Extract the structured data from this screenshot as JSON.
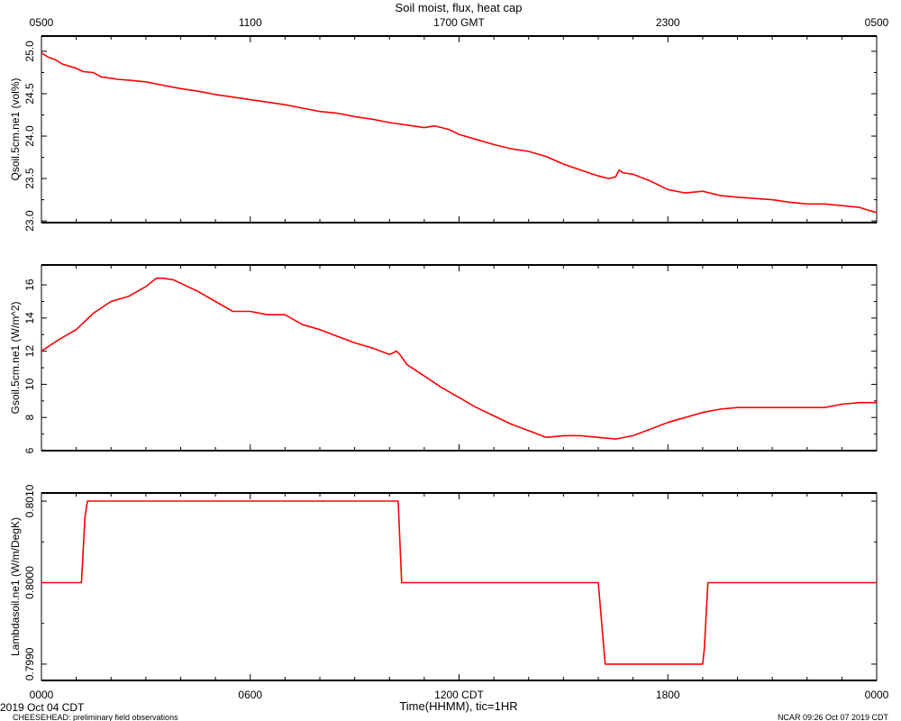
{
  "title": "Soil moist, flux, heat cap",
  "top_axis": {
    "ticks": [
      "0500",
      "1100",
      "1700 GMT",
      "2300",
      "0500"
    ]
  },
  "bottom_axis": {
    "ticks": [
      "0000",
      "0600",
      "1200 CDT",
      "1800",
      "0000"
    ],
    "label": "Time(HHMM), tic=1HR"
  },
  "footer": {
    "start_date": "2019 Oct 04 CDT",
    "project": "CHEESEHEAD: preliminary field observations",
    "credit": "NCAR 09:26 Oct 07 2019 CDT"
  },
  "colors": {
    "series": "#ff0000",
    "axes": "#000000"
  },
  "chart_data": [
    {
      "type": "line",
      "ylabel": "Qsoil.5cm.ne1 (vol%)",
      "ylim": [
        22.98,
        25.18
      ],
      "ytick_values": [
        23.0,
        23.5,
        24.0,
        24.5,
        25.0
      ],
      "ytick_labels": [
        "23.0",
        "23.5",
        "24.0",
        "24.5",
        "25.0"
      ],
      "xlim": [
        0,
        24
      ],
      "x": [
        0,
        0.2,
        0.4,
        0.6,
        1.0,
        1.2,
        1.5,
        1.7,
        2.2,
        2.5,
        3.0,
        3.5,
        4.0,
        4.5,
        5.0,
        6.0,
        7.0,
        7.5,
        8.0,
        8.5,
        9.0,
        9.5,
        10.0,
        10.5,
        11.0,
        11.3,
        11.5,
        11.7,
        12.0,
        12.5,
        13.0,
        13.5,
        14.0,
        14.5,
        15.0,
        15.5,
        16.0,
        16.3,
        16.5,
        16.6,
        16.7,
        17.0,
        17.5,
        18.0,
        18.5,
        19.0,
        19.5,
        20.0,
        21.0,
        21.5,
        22.0,
        22.5,
        23.0,
        23.5,
        23.8,
        24.0
      ],
      "y": [
        24.98,
        24.93,
        24.9,
        24.85,
        24.8,
        24.76,
        24.75,
        24.7,
        24.67,
        24.66,
        24.64,
        24.6,
        24.56,
        24.53,
        24.49,
        24.43,
        24.37,
        24.33,
        24.29,
        24.27,
        24.23,
        24.2,
        24.16,
        24.13,
        24.1,
        24.12,
        24.1,
        24.08,
        24.02,
        23.96,
        23.9,
        23.85,
        23.82,
        23.76,
        23.67,
        23.6,
        23.53,
        23.5,
        23.52,
        23.6,
        23.57,
        23.55,
        23.47,
        23.37,
        23.33,
        23.35,
        23.3,
        23.28,
        23.25,
        23.22,
        23.2,
        23.2,
        23.18,
        23.16,
        23.12,
        23.1
      ]
    },
    {
      "type": "line",
      "ylabel": "Gsoil.5cm.ne1 (W/m^2)",
      "ylim": [
        6,
        17.2
      ],
      "ytick_values": [
        6,
        8,
        10,
        12,
        14,
        16
      ],
      "ytick_labels": [
        "6",
        "8",
        "10",
        "12",
        "14",
        "16"
      ],
      "xlim": [
        0,
        24
      ],
      "x": [
        0,
        0.5,
        1.0,
        1.5,
        2.0,
        2.5,
        3.0,
        3.3,
        3.5,
        3.8,
        4.0,
        4.5,
        5.0,
        5.5,
        6.0,
        6.5,
        7.0,
        7.5,
        8.0,
        8.5,
        9.0,
        9.5,
        10.0,
        10.2,
        10.3,
        10.5,
        11.0,
        11.5,
        12.0,
        12.5,
        13.0,
        13.5,
        14.0,
        14.5,
        15.0,
        15.5,
        16.0,
        16.5,
        17.0,
        17.5,
        18.0,
        18.5,
        19.0,
        19.5,
        20.0,
        20.5,
        21.0,
        21.5,
        22.0,
        22.5,
        23.0,
        23.5,
        24.0
      ],
      "y": [
        12,
        12.7,
        13.3,
        14.3,
        15.0,
        15.3,
        15.9,
        16.4,
        16.4,
        16.3,
        16.1,
        15.6,
        15.0,
        14.4,
        14.4,
        14.2,
        14.2,
        13.6,
        13.3,
        12.9,
        12.5,
        12.2,
        11.8,
        12.0,
        11.8,
        11.2,
        10.5,
        9.8,
        9.2,
        8.6,
        8.1,
        7.6,
        7.2,
        6.8,
        6.9,
        6.9,
        6.8,
        6.7,
        6.9,
        7.3,
        7.7,
        8.0,
        8.3,
        8.5,
        8.6,
        8.6,
        8.6,
        8.6,
        8.6,
        8.6,
        8.8,
        8.9,
        8.9
      ]
    },
    {
      "type": "line",
      "ylabel": "Lambdasoil.ne1 (W/m/DegK)",
      "ylim": [
        0.7988,
        0.8011
      ],
      "ytick_values": [
        0.799,
        0.8,
        0.801
      ],
      "ytick_labels": [
        "0.7990",
        "0.8000",
        "0.8010"
      ],
      "xlim": [
        0,
        24
      ],
      "x": [
        0,
        1.15,
        1.25,
        1.32,
        10.25,
        10.35,
        10.45,
        16.0,
        16.2,
        16.4,
        19.0,
        19.05,
        19.15,
        24.0
      ],
      "y": [
        0.8,
        0.8,
        0.8008,
        0.801,
        0.801,
        0.8,
        0.8,
        0.8,
        0.799,
        0.799,
        0.799,
        0.7992,
        0.8,
        0.8
      ]
    }
  ]
}
